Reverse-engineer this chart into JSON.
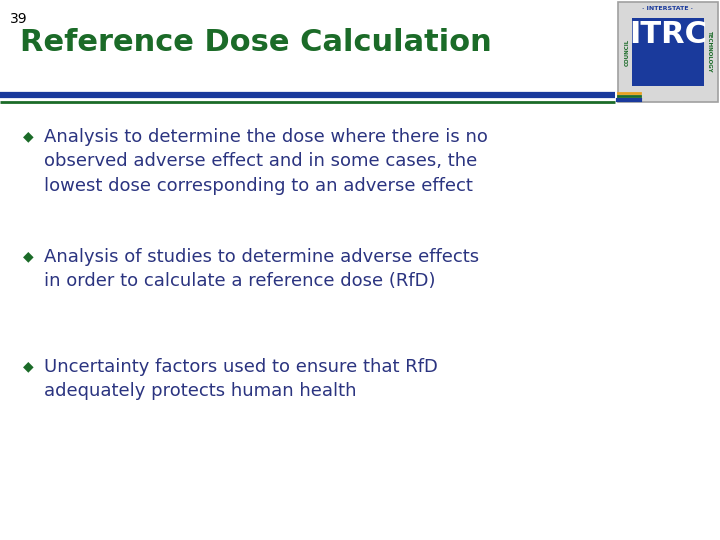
{
  "slide_number": "39",
  "title": "Reference Dose Calculation",
  "title_color": "#1b6b28",
  "title_fontsize": 22,
  "content_bg": "#ffffff",
  "text_color": "#2b3480",
  "bullet_color": "#1b6b28",
  "slide_number_color": "#000000",
  "slide_number_fontsize": 10,
  "line1_color": "#1a3a9c",
  "line2_color": "#1b6b28",
  "bullets": [
    "Analysis to determine the dose where there is no\nobserved adverse effect and in some cases, the\nlowest dose corresponding to an adverse effect",
    "Analysis of studies to determine adverse effects\nin order to calculate a reference dose (RfD)",
    "Uncertainty factors used to ensure that RfD\nadequately protects human health"
  ],
  "bullet_fontsize": 13,
  "logo_border_color": "#a0a0a0",
  "logo_bg": "#d8d8d8",
  "logo_text_color": "#1a3a9c",
  "logo_green": "#1b6b28"
}
